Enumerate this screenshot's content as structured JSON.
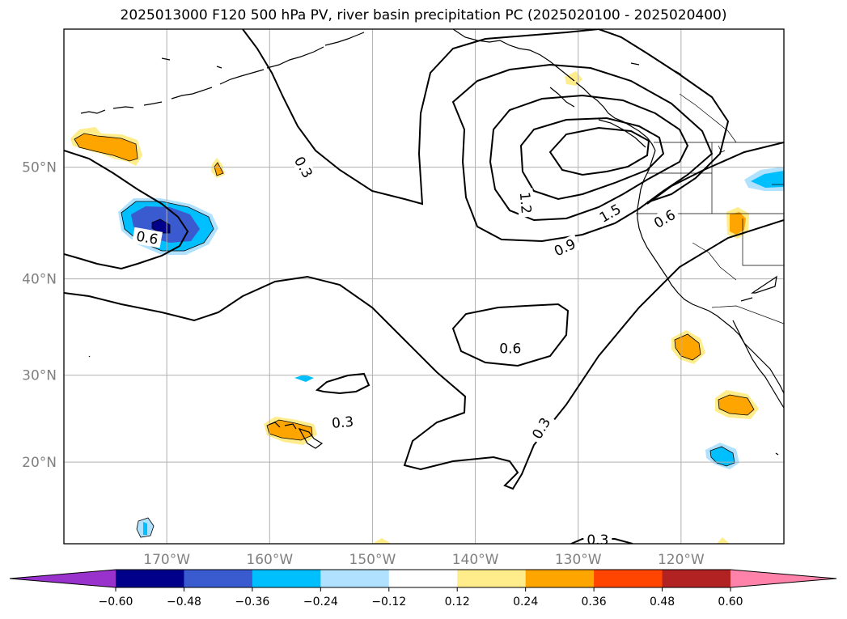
{
  "title": "2025013000 F120 500 hPa PV, river basin precipitation PC (2025020100 - 2025020400)",
  "map": {
    "lon_range": [
      -180,
      -110
    ],
    "lat_range": [
      10,
      60
    ],
    "lon_ticks": [
      {
        "value": -170,
        "label": "170°W"
      },
      {
        "value": -160,
        "label": "160°W"
      },
      {
        "value": -150,
        "label": "150°W"
      },
      {
        "value": -140,
        "label": "140°W"
      },
      {
        "value": -130,
        "label": "130°W"
      },
      {
        "value": -120,
        "label": "120°W"
      }
    ],
    "lat_ticks": [
      {
        "value": 50,
        "label": "50°N"
      },
      {
        "value": 40,
        "label": "40°N"
      },
      {
        "value": 30,
        "label": "30°N"
      },
      {
        "value": 20,
        "label": "20°N"
      }
    ],
    "gridlines": true,
    "contour_labels": [
      {
        "text": "0.3",
        "lon": -156.7,
        "lat": 50.0,
        "rotate": 60
      },
      {
        "text": "0.6",
        "lon": -171.9,
        "lat": 43.9,
        "rotate": 10
      },
      {
        "text": "1.2",
        "lon": -135.1,
        "lat": 47.0,
        "rotate": 85
      },
      {
        "text": "1.5",
        "lon": -126.9,
        "lat": 46.1,
        "rotate": -30
      },
      {
        "text": "0.9",
        "lon": -131.3,
        "lat": 43.0,
        "rotate": -25
      },
      {
        "text": "0.6",
        "lon": -121.6,
        "lat": 45.6,
        "rotate": -30
      },
      {
        "text": "0.6",
        "lon": -136.6,
        "lat": 32.9,
        "rotate": 0
      },
      {
        "text": "0.3",
        "lon": -152.9,
        "lat": 24.7,
        "rotate": -5
      },
      {
        "text": "0.3",
        "lon": -133.6,
        "lat": 24.0,
        "rotate": -60
      },
      {
        "text": "0.3",
        "lon": -128.1,
        "lat": 10.5,
        "rotate": 0
      }
    ],
    "colors": {
      "contour": "#000000",
      "coast": "#000000",
      "grid": "#b0b0b0"
    }
  },
  "colorbar": {
    "levels": [
      -0.6,
      -0.48,
      -0.36,
      -0.24,
      -0.12,
      0.12,
      0.24,
      0.36,
      0.48,
      0.6
    ],
    "tick_labels": [
      "−0.60",
      "−0.48",
      "−0.36",
      "−0.24",
      "−0.12",
      "0.12",
      "0.24",
      "0.36",
      "0.48",
      "0.60"
    ],
    "colors": [
      "#9932cc",
      "#00008b",
      "#3a5bd0",
      "#00bfff",
      "#b0e2ff",
      "#ffffff",
      "#ffec8b",
      "#ffa500",
      "#ff4500",
      "#b22222",
      "#ff82ab"
    ],
    "extend": "both"
  }
}
